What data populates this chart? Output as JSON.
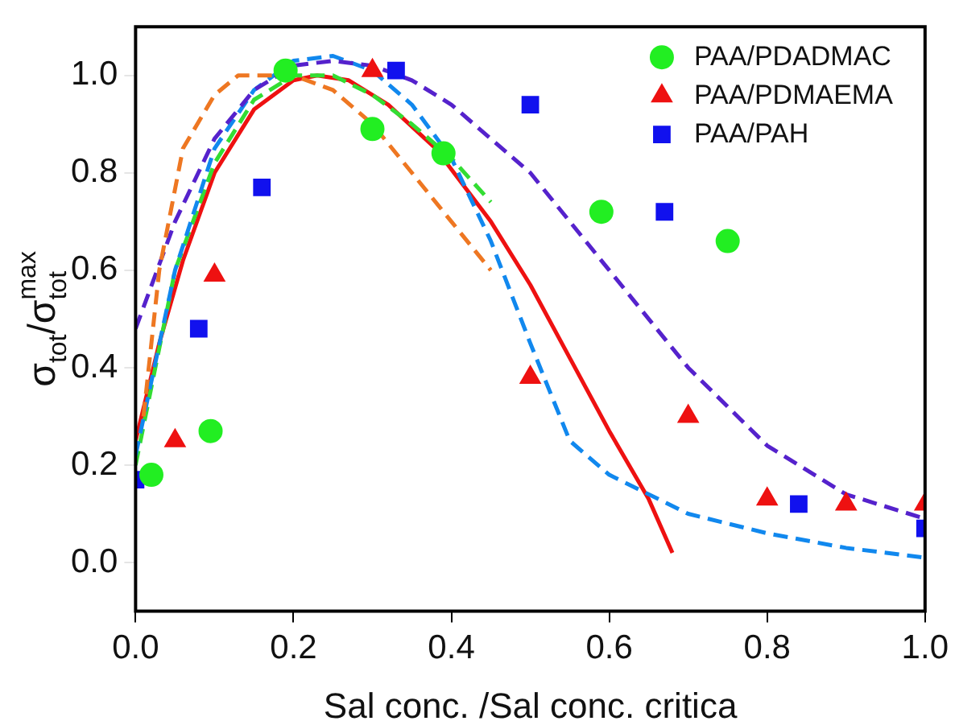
{
  "chart_data": {
    "type": "scatter",
    "xlabel": "Sal conc. /Sal conc. critica",
    "ylabel": "σ$_{tot}$/σ$_{tot}$$^{max}$",
    "xlim": [
      0,
      1
    ],
    "ylim": [
      -0.1,
      1.1
    ],
    "xticks": [
      {
        "value": 0,
        "label": "0.0"
      },
      0.2,
      0.4,
      0.6,
      0.8,
      {
        "value": 1,
        "label": "1.0"
      }
    ],
    "yticks": [
      {
        "value": 0,
        "label": "0.0"
      },
      0.2,
      0.4,
      0.6,
      0.8,
      {
        "value": 1,
        "label": "1.0"
      }
    ],
    "grid": false,
    "legend": "top right",
    "series": [
      {
        "name": "PAA/PDADMAC",
        "marker": "circle",
        "color": "#22ee22",
        "x": [
          0.02,
          0.095,
          0.19,
          0.3,
          0.39,
          0.59,
          0.75
        ],
        "values": [
          0.18,
          0.27,
          1.01,
          0.89,
          0.84,
          0.72,
          0.66
        ]
      },
      {
        "name": "PAA/PDMAEMA",
        "marker": "triangle",
        "color": "#ee1111",
        "x": [
          0.05,
          0.1,
          0.3,
          0.5,
          0.7,
          0.8,
          0.9,
          1.0
        ],
        "values": [
          0.25,
          0.59,
          1.01,
          0.38,
          0.3,
          0.13,
          0.12,
          0.12
        ]
      },
      {
        "name": "PAA/PAH",
        "marker": "square",
        "color": "#1111ee",
        "x": [
          0.0,
          0.08,
          0.16,
          0.33,
          0.5,
          0.67,
          0.84,
          1.0
        ],
        "values": [
          0.17,
          0.48,
          0.77,
          1.01,
          0.94,
          0.72,
          0.12,
          0.07
        ]
      },
      {
        "type": "line",
        "marker": "none",
        "line_style": "dashed",
        "color": "#ee7722",
        "x": [
          0.01,
          0.03,
          0.06,
          0.1,
          0.13,
          0.2,
          0.25,
          0.3,
          0.35,
          0.4,
          0.45
        ],
        "values": [
          0.3,
          0.6,
          0.85,
          0.96,
          1.0,
          1.0,
          0.97,
          0.9,
          0.8,
          0.7,
          0.6
        ]
      },
      {
        "type": "line",
        "marker": "none",
        "line_style": "dashed",
        "color": "#5522cc",
        "x": [
          0,
          0.05,
          0.1,
          0.15,
          0.2,
          0.25,
          0.3,
          0.35,
          0.4,
          0.5,
          0.6,
          0.7,
          0.8,
          0.9,
          1.0
        ],
        "values": [
          0.48,
          0.7,
          0.87,
          0.97,
          1.02,
          1.03,
          1.02,
          0.99,
          0.94,
          0.8,
          0.6,
          0.4,
          0.24,
          0.14,
          0.09
        ]
      },
      {
        "type": "line",
        "marker": "none",
        "line_style": "dashed",
        "color": "#1188ee",
        "x": [
          0,
          0.05,
          0.1,
          0.15,
          0.2,
          0.25,
          0.3,
          0.35,
          0.4,
          0.45,
          0.5,
          0.55,
          0.6,
          0.7,
          0.8,
          0.9,
          1.0
        ],
        "values": [
          0.22,
          0.6,
          0.85,
          0.97,
          1.03,
          1.04,
          1.01,
          0.94,
          0.83,
          0.66,
          0.45,
          0.25,
          0.18,
          0.1,
          0.06,
          0.03,
          0.01
        ]
      },
      {
        "type": "line",
        "marker": "none",
        "line_style": "dashed",
        "color": "#33dd33",
        "x": [
          0,
          0.05,
          0.1,
          0.15,
          0.2,
          0.25,
          0.3,
          0.35,
          0.4,
          0.45
        ],
        "values": [
          0.2,
          0.6,
          0.82,
          0.95,
          1.0,
          1.0,
          0.96,
          0.9,
          0.83,
          0.74
        ]
      },
      {
        "type": "line",
        "marker": "none",
        "line_style": "solid",
        "color": "#ee1111",
        "x": [
          0,
          0.03,
          0.06,
          0.1,
          0.15,
          0.2,
          0.23,
          0.27,
          0.32,
          0.38,
          0.45,
          0.5,
          0.55,
          0.6,
          0.65,
          0.68
        ],
        "values": [
          0.25,
          0.45,
          0.62,
          0.8,
          0.93,
          0.99,
          1.0,
          0.99,
          0.94,
          0.85,
          0.7,
          0.57,
          0.42,
          0.27,
          0.13,
          0.02
        ]
      }
    ]
  }
}
